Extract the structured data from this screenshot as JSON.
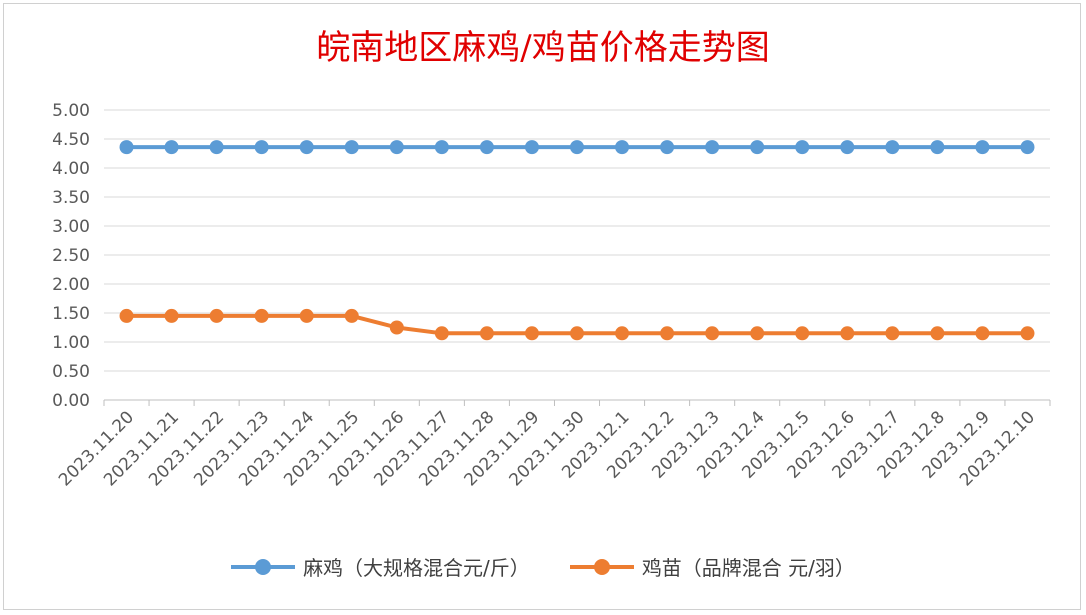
{
  "chart_data": {
    "type": "line",
    "title": "皖南地区麻鸡/鸡苗价格走势图",
    "categories": [
      "2023.11.20",
      "2023.11.21",
      "2023.11.22",
      "2023.11.23",
      "2023.11.24",
      "2023.11.25",
      "2023.11.26",
      "2023.11.27",
      "2023.11.28",
      "2023.11.29",
      "2023.11.30",
      "2023.12.1",
      "2023.12.2",
      "2023.12.3",
      "2023.12.4",
      "2023.12.5",
      "2023.12.6",
      "2023.12.7",
      "2023.12.8",
      "2023.12.9",
      "2023.12.10"
    ],
    "yticks": [
      "0.00",
      "0.50",
      "1.00",
      "1.50",
      "2.00",
      "2.50",
      "3.00",
      "3.50",
      "4.00",
      "4.50",
      "5.00"
    ],
    "ylim": [
      0,
      5
    ],
    "grid": true,
    "legend_position": "bottom",
    "series": [
      {
        "name": "麻鸡（大规格混合元/斤）",
        "color": "#5b9bd5",
        "values": [
          4.36,
          4.36,
          4.36,
          4.36,
          4.36,
          4.36,
          4.36,
          4.36,
          4.36,
          4.36,
          4.36,
          4.36,
          4.36,
          4.36,
          4.36,
          4.36,
          4.36,
          4.36,
          4.36,
          4.36,
          4.36
        ]
      },
      {
        "name": "鸡苗（品牌混合 元/羽）",
        "color": "#ed7d31",
        "values": [
          1.45,
          1.45,
          1.45,
          1.45,
          1.45,
          1.45,
          1.25,
          1.15,
          1.15,
          1.15,
          1.15,
          1.15,
          1.15,
          1.15,
          1.15,
          1.15,
          1.15,
          1.15,
          1.15,
          1.15,
          1.15
        ]
      }
    ]
  }
}
